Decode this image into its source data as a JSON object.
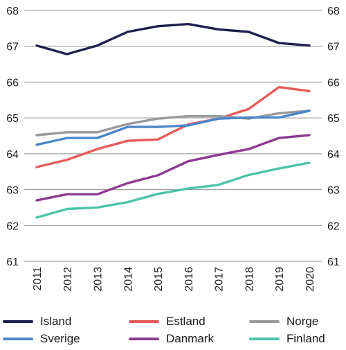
{
  "chart_data": {
    "type": "line",
    "x": [
      2011,
      2012,
      2013,
      2014,
      2015,
      2016,
      2017,
      2018,
      2019,
      2020
    ],
    "ylim": [
      61,
      68
    ],
    "yticks": [
      61,
      62,
      63,
      64,
      65,
      66,
      67,
      68
    ],
    "grid": true,
    "legend_position": "bottom",
    "series": [
      {
        "name": "Island",
        "color": "#1f1f4d",
        "values": [
          67.02,
          66.78,
          67.02,
          67.4,
          67.56,
          67.62,
          67.47,
          67.4,
          67.09,
          67.02
        ]
      },
      {
        "name": "Estland",
        "color": "#e85a5a",
        "values": [
          63.63,
          63.83,
          64.13,
          64.36,
          64.4,
          64.82,
          64.98,
          65.25,
          65.86,
          65.75
        ]
      },
      {
        "name": "Norge",
        "color": "#9a9a9a",
        "values": [
          64.52,
          64.6,
          64.6,
          64.83,
          64.98,
          65.05,
          65.05,
          64.98,
          65.13,
          65.2
        ]
      },
      {
        "name": "Sverige",
        "color": "#4a86c8",
        "values": [
          64.25,
          64.44,
          64.44,
          64.75,
          64.75,
          64.79,
          64.98,
          65.01,
          65.01,
          65.2
        ]
      },
      {
        "name": "Danmark",
        "color": "#8b3a8f",
        "values": [
          62.7,
          62.87,
          62.87,
          63.18,
          63.4,
          63.79,
          63.97,
          64.13,
          64.44,
          64.52
        ]
      },
      {
        "name": "Finland",
        "color": "#4cc4a8",
        "values": [
          62.22,
          62.46,
          62.5,
          62.65,
          62.88,
          63.03,
          63.13,
          63.41,
          63.59,
          63.75
        ]
      }
    ]
  }
}
